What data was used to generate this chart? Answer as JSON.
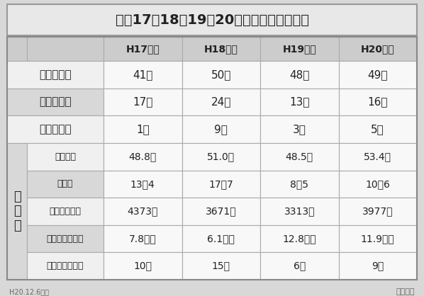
{
  "title": "平成17・18・19・20年度の退院者の現状",
  "headers": [
    "",
    "H17年度",
    "H18年度",
    "H19年度",
    "H20年度"
  ],
  "rows": [
    {
      "label": "対　象　者",
      "values": [
        "41名",
        "50名",
        "48名",
        "49名"
      ],
      "group": "top",
      "bold": true
    },
    {
      "label": "退　院　者",
      "values": [
        "17名",
        "24名",
        "13名",
        "16名"
      ],
      "group": "top",
      "bold": true
    },
    {
      "label": "中　断　者",
      "values": [
        "1名",
        "9名",
        "3名",
        "5名"
      ],
      "group": "top",
      "bold": true
    },
    {
      "label": "平均年齢",
      "values": [
        "48.8歳",
        "51.0歳",
        "48.5歳",
        "53.4歳"
      ],
      "group": "bottom",
      "bold": false
    },
    {
      "label": "男女比",
      "values": [
        "13：4",
        "17：7",
        "8：5",
        "10：6"
      ],
      "group": "bottom",
      "bold": false
    },
    {
      "label": "平均入院期間",
      "values": [
        "4373日",
        "3671日",
        "3313日",
        "3977日"
      ],
      "group": "bottom",
      "bold": false
    },
    {
      "label": "退院までの期間",
      "values": [
        "7.8ヶ月",
        "6.1ヶ月",
        "12.8ヶ月",
        "11.9ヶ月"
      ],
      "group": "bottom",
      "bold": false
    },
    {
      "label": "生活保護受給者",
      "values": [
        "10名",
        "15名",
        "6名",
        "9名"
      ],
      "group": "bottom",
      "bold": false
    }
  ],
  "left_label": "退\n院\n者",
  "bg_color": "#d8d8d8",
  "header_bg": "#cccccc",
  "cell_bg_light": "#f0f0f0",
  "cell_bg_white": "#f8f8f8",
  "cell_bg_dark": "#d8d8d8",
  "border_color": "#aaaaaa",
  "title_bg": "#e8e8e8",
  "text_color": "#222222",
  "footer_left": "H20.12.6現在",
  "footer_right": "麻立ち台"
}
